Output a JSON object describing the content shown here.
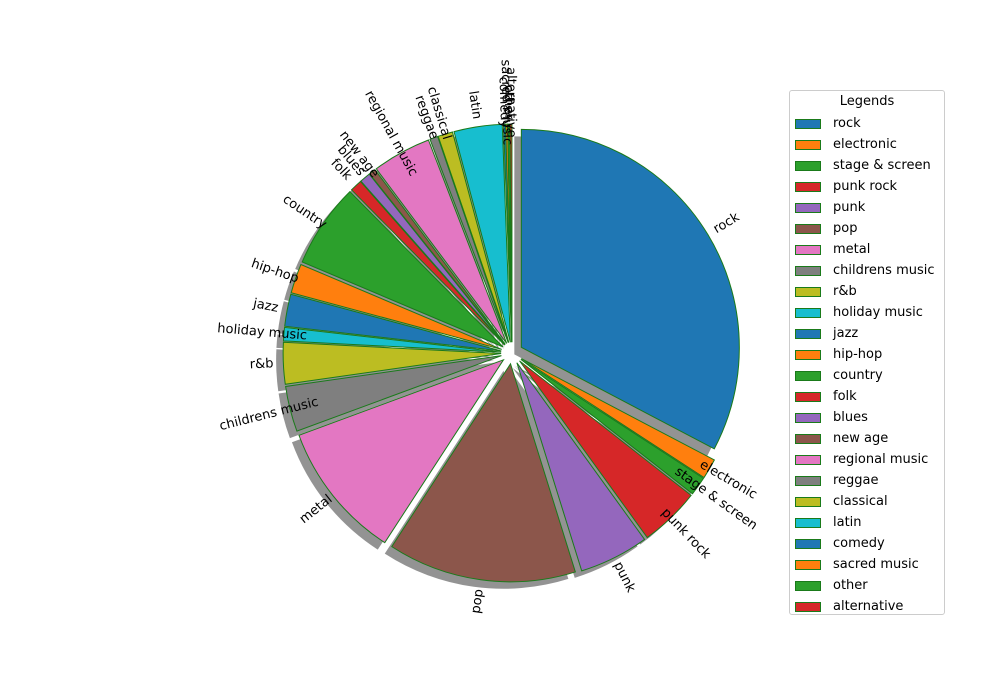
{
  "chart_data": {
    "type": "pie",
    "title": "",
    "legend_title": "Legends",
    "legend_position": "right",
    "slices": [
      {
        "label": "rock",
        "value": 33.0,
        "color": "#1f77b4"
      },
      {
        "label": "electronic",
        "value": 1.5,
        "color": "#ff7f0e"
      },
      {
        "label": "stage & screen",
        "value": 1.4,
        "color": "#2ca02c"
      },
      {
        "label": "punk rock",
        "value": 4.5,
        "color": "#d62728"
      },
      {
        "label": "punk",
        "value": 5.2,
        "color": "#9467bd"
      },
      {
        "label": "pop",
        "value": 14.1,
        "color": "#8c564b"
      },
      {
        "label": "metal",
        "value": 10.3,
        "color": "#e377c2"
      },
      {
        "label": "childrens music",
        "value": 3.4,
        "color": "#7f7f7f"
      },
      {
        "label": "r&b",
        "value": 3.1,
        "color": "#bcbd22"
      },
      {
        "label": "holiday music",
        "value": 1.0,
        "color": "#17becf"
      },
      {
        "label": "jazz",
        "value": 2.4,
        "color": "#1f77b4"
      },
      {
        "label": "hip-hop",
        "value": 2.2,
        "color": "#ff7f0e"
      },
      {
        "label": "country",
        "value": 6.3,
        "color": "#2ca02c"
      },
      {
        "label": "folk",
        "value": 0.9,
        "color": "#d62728"
      },
      {
        "label": "blues",
        "value": 0.8,
        "color": "#9467bd"
      },
      {
        "label": "new age",
        "value": 0.5,
        "color": "#8c564b"
      },
      {
        "label": "regional music",
        "value": 4.4,
        "color": "#e377c2"
      },
      {
        "label": "reggae",
        "value": 0.6,
        "color": "#7f7f7f"
      },
      {
        "label": "classical",
        "value": 1.1,
        "color": "#bcbd22"
      },
      {
        "label": "latin",
        "value": 3.6,
        "color": "#17becf"
      },
      {
        "label": "comedy",
        "value": 0.15,
        "color": "#1f77b4"
      },
      {
        "label": "sacred music",
        "value": 0.15,
        "color": "#ff7f0e"
      },
      {
        "label": "other",
        "value": 0.15,
        "color": "#2ca02c"
      },
      {
        "label": "alternative",
        "value": 0.15,
        "color": "#d62728"
      }
    ]
  }
}
